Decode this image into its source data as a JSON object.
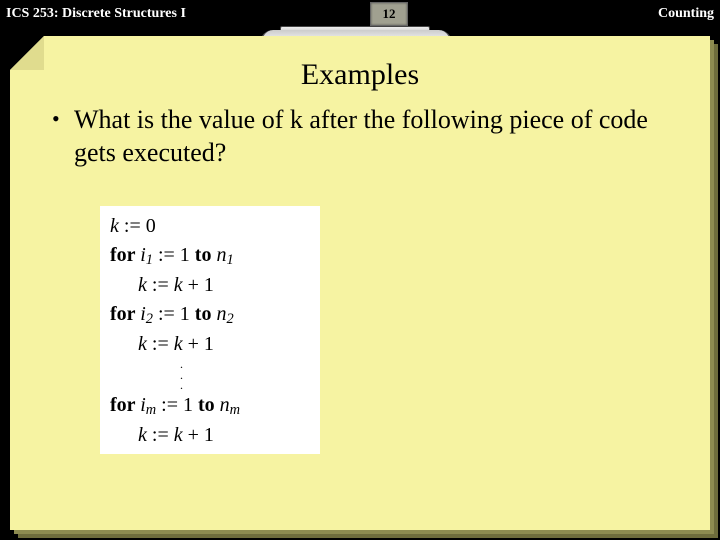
{
  "header": {
    "left": "ICS 253: Discrete Structures I",
    "right": "Counting",
    "page_number": "12"
  },
  "slide": {
    "title": "Examples",
    "bullet": "What is the value of k after the following piece of code gets executed?"
  },
  "code": {
    "l1a": "k",
    "l1b": " := 0",
    "for": "for ",
    "to": " to ",
    "i": "i",
    "n": "n",
    "s1": "1",
    "s2": "2",
    "sm": "m",
    "assign_txt": " := 1",
    "kinc_a": "k",
    "kinc_b": " := ",
    "kinc_c": "k",
    "kinc_d": " + 1",
    "dot": "."
  },
  "colors": {
    "paper_bg": "#f6f3a2",
    "page_bg": "#000000"
  }
}
